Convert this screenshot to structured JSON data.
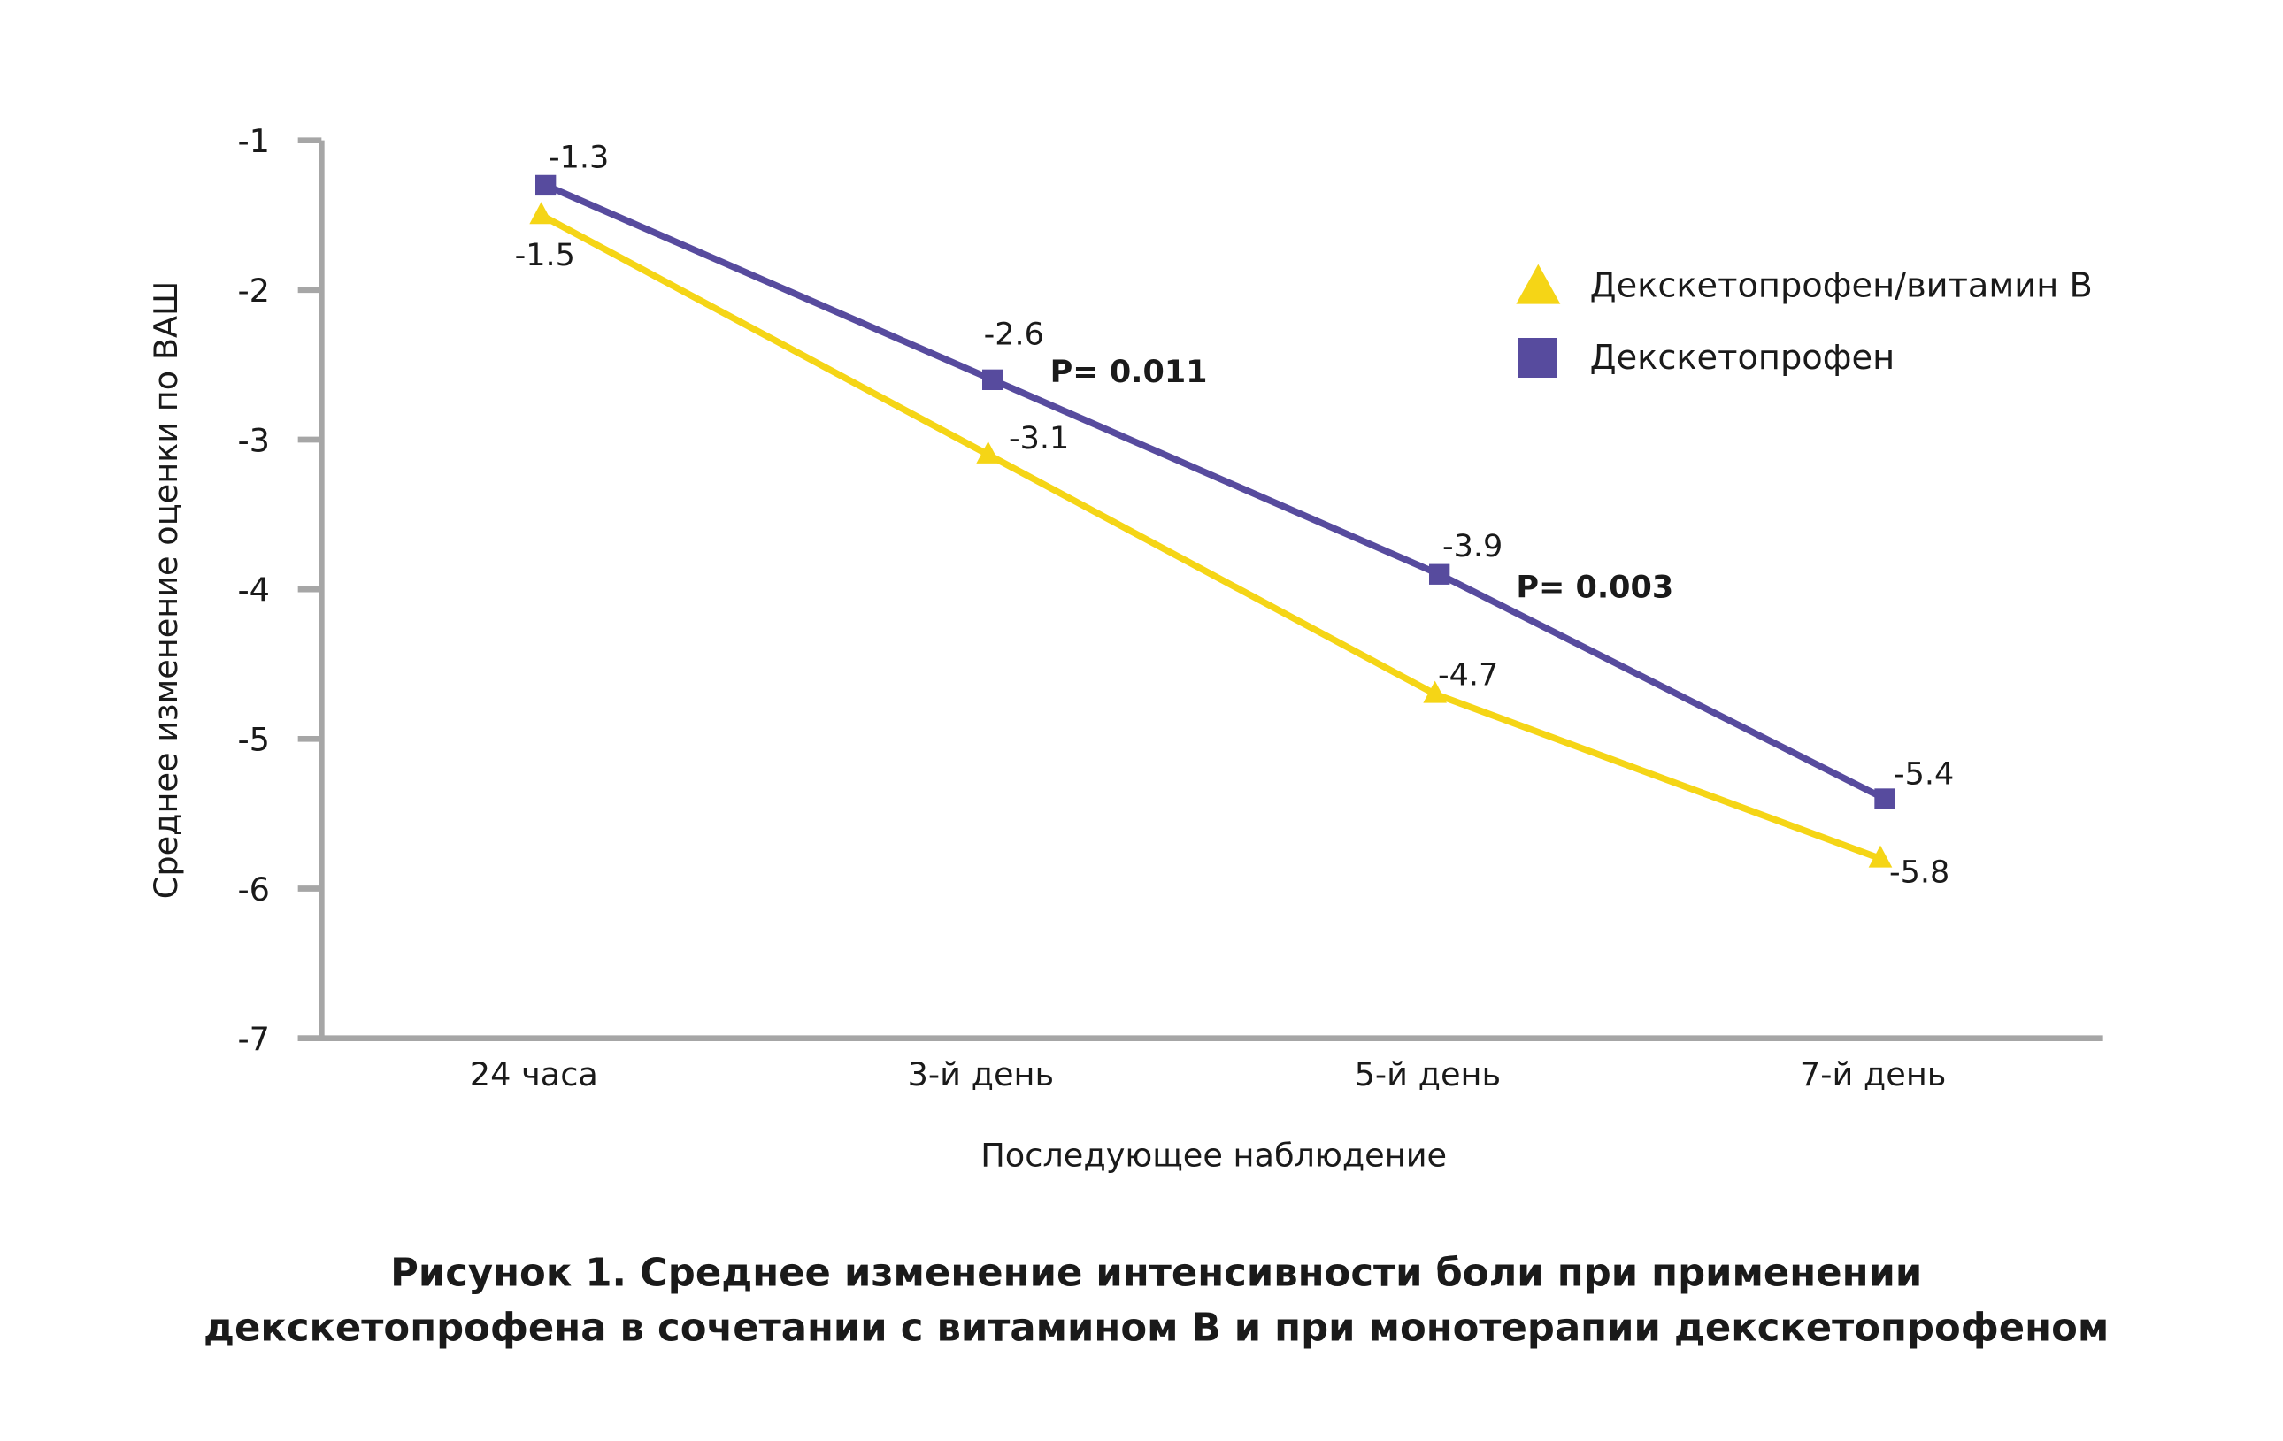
{
  "chart_data": {
    "type": "line",
    "categories": [
      "24 часа",
      "3-й день",
      "5-й день",
      "7-й день"
    ],
    "series": [
      {
        "name": "Декскетопрофен/витамин B",
        "marker": "triangle",
        "color": "#f5d516",
        "values": [
          -1.5,
          -3.1,
          -4.7,
          -5.8
        ],
        "labels": [
          "-1.5",
          "-3.1",
          "-4.7",
          "-5.8"
        ]
      },
      {
        "name": "Декскетопрофен",
        "marker": "square",
        "color": "#574b9e",
        "values": [
          -1.3,
          -2.6,
          -3.9,
          -5.4
        ],
        "labels": [
          "-1.3",
          "-2.6",
          "-3.9",
          "-5.4"
        ]
      }
    ],
    "xlabel": "Последующее наблюдение",
    "ylabel": "Среднее изменение оценки по ВАШ",
    "ylim": [
      -7,
      -1
    ],
    "yticks": [
      "-1",
      "-2",
      "-3",
      "-4",
      "-5",
      "-6",
      "-7"
    ],
    "ytick_values": [
      -1,
      -2,
      -3,
      -4,
      -5,
      -6,
      -7
    ],
    "grid": false,
    "legend_position": "top-right",
    "annotations": [
      {
        "text": "P= 0.011",
        "category": "3-й день"
      },
      {
        "text": "P= 0.003",
        "category": "5-й день"
      }
    ],
    "axis_color": "#a6a6a6"
  },
  "caption": {
    "line1": "Рисунок 1. Среднее изменение интенсивности боли при применении",
    "line2": "декскетопрофена в сочетании с витамином В и при монотерапии декскетопрофеном"
  }
}
